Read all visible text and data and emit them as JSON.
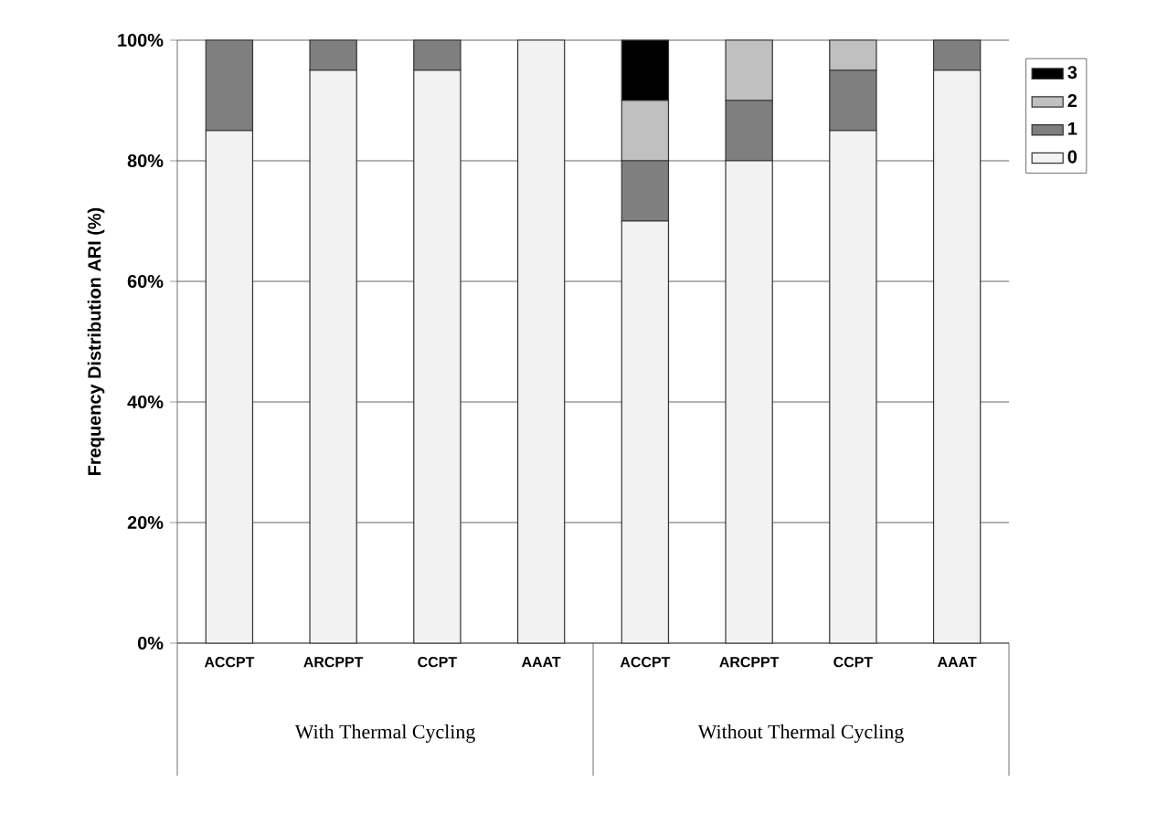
{
  "chart_data": {
    "type": "bar",
    "stacked": true,
    "ylabel": "Frequency Distribution ARI (%)",
    "categories": [
      "ACCPT",
      "ARCPPT",
      "CCPT",
      "AAAT",
      "ACCPT",
      "ARCPPT",
      "CCPT",
      "AAAT"
    ],
    "series": [
      {
        "name": "0",
        "color": "#f2f2f2",
        "values": [
          85,
          95,
          95,
          100,
          70,
          80,
          85,
          95
        ]
      },
      {
        "name": "1",
        "color": "#7f7f7f",
        "values": [
          15,
          5,
          5,
          0,
          10,
          10,
          10,
          5
        ]
      },
      {
        "name": "2",
        "color": "#c0c0c0",
        "values": [
          0,
          0,
          0,
          0,
          10,
          10,
          5,
          0
        ]
      },
      {
        "name": "3",
        "color": "#000000",
        "values": [
          0,
          0,
          0,
          0,
          10,
          0,
          0,
          0
        ]
      }
    ],
    "ylim": [
      0,
      100
    ],
    "yticks": [
      {
        "value": 0,
        "label": "0%"
      },
      {
        "value": 20,
        "label": "20%"
      },
      {
        "value": 40,
        "label": "40%"
      },
      {
        "value": 60,
        "label": "60%"
      },
      {
        "value": 80,
        "label": "80%"
      },
      {
        "value": 100,
        "label": "100%"
      }
    ],
    "grid": "y",
    "legend": "right",
    "annotations": [
      "With Thermal Cycling",
      "Without Thermal Cycling"
    ]
  }
}
